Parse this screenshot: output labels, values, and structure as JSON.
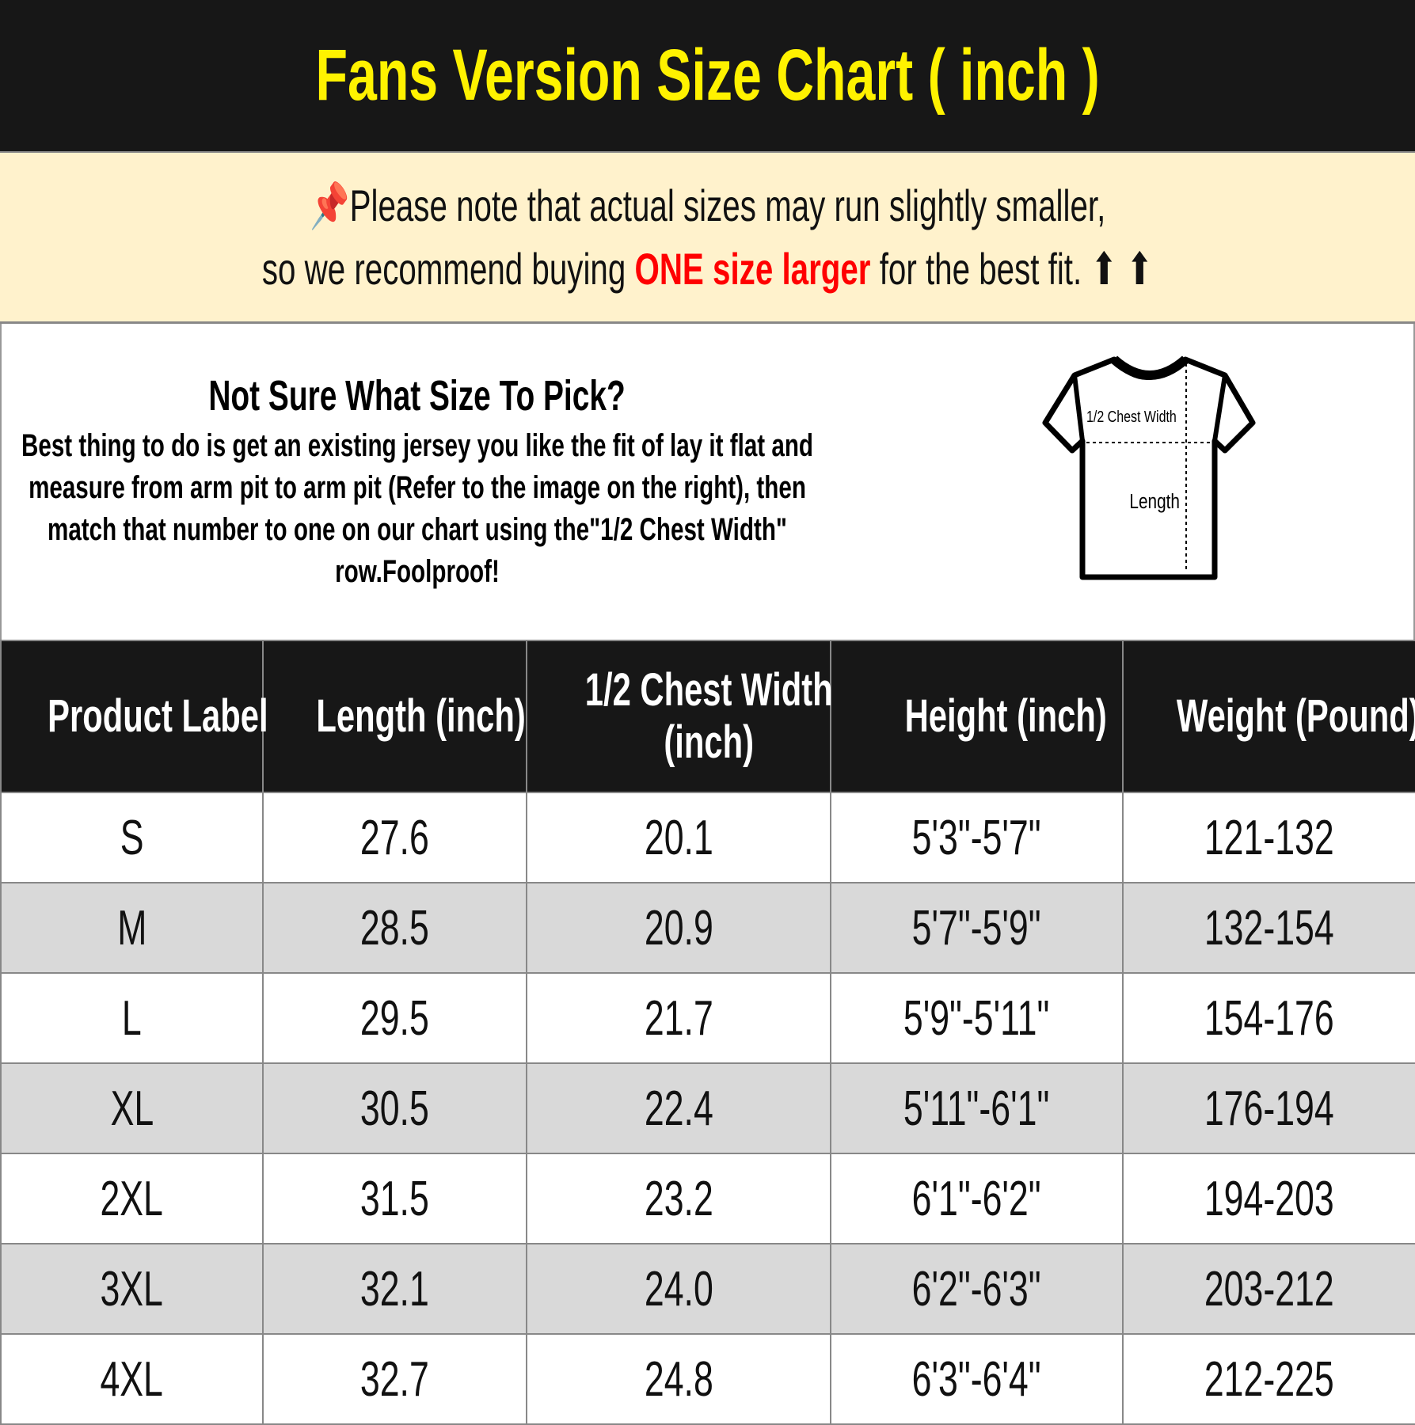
{
  "title": "Fans Version Size Chart ( inch )",
  "note": {
    "icon": "pushpin-icon",
    "line1": "Please note that actual sizes may run slightly smaller,",
    "line2_prefix": "so we recommend buying ",
    "line2_highlight": "ONE size larger",
    "line2_suffix": " for the best fit.",
    "arrows": "⬆ ⬆",
    "highlight_color": "#ff0000"
  },
  "info": {
    "heading": "Not Sure What Size To Pick?",
    "body": "Best thing to do is get an existing jersey you like the fit of lay it flat and measure from arm pit to arm pit (Refer to the image on the right), then match that number to one on our chart using the\"1/2 Chest Width\" row.Foolproof!",
    "diagram": {
      "chest_label": "1/2 Chest Width",
      "length_label": "Length"
    }
  },
  "table": {
    "headers": [
      "Product Label",
      "Length (inch)",
      "1/2 Chest Width (inch)",
      "Height (inch)",
      "Weight (Pound)"
    ],
    "rows": [
      [
        "S",
        "27.6",
        "20.1",
        "5'3\"-5'7\"",
        "121-132"
      ],
      [
        "M",
        "28.5",
        "20.9",
        "5'7\"-5'9\"",
        "132-154"
      ],
      [
        "L",
        "29.5",
        "21.7",
        "5'9\"-5'11\"",
        "154-176"
      ],
      [
        "XL",
        "30.5",
        "22.4",
        "5'11\"-6'1\"",
        "176-194"
      ],
      [
        "2XL",
        "31.5",
        "23.2",
        "6'1\"-6'2\"",
        "194-203"
      ],
      [
        "3XL",
        "32.1",
        "24.0",
        "6'2\"-6'3\"",
        "203-212"
      ],
      [
        "4XL",
        "32.7",
        "24.8",
        "6'3\"-6'4\"",
        "212-225"
      ]
    ]
  },
  "colors": {
    "title_bg": "#171717",
    "title_text": "#fff200",
    "note_bg": "#fff2cc",
    "alt_row": "#d9d9d9"
  }
}
